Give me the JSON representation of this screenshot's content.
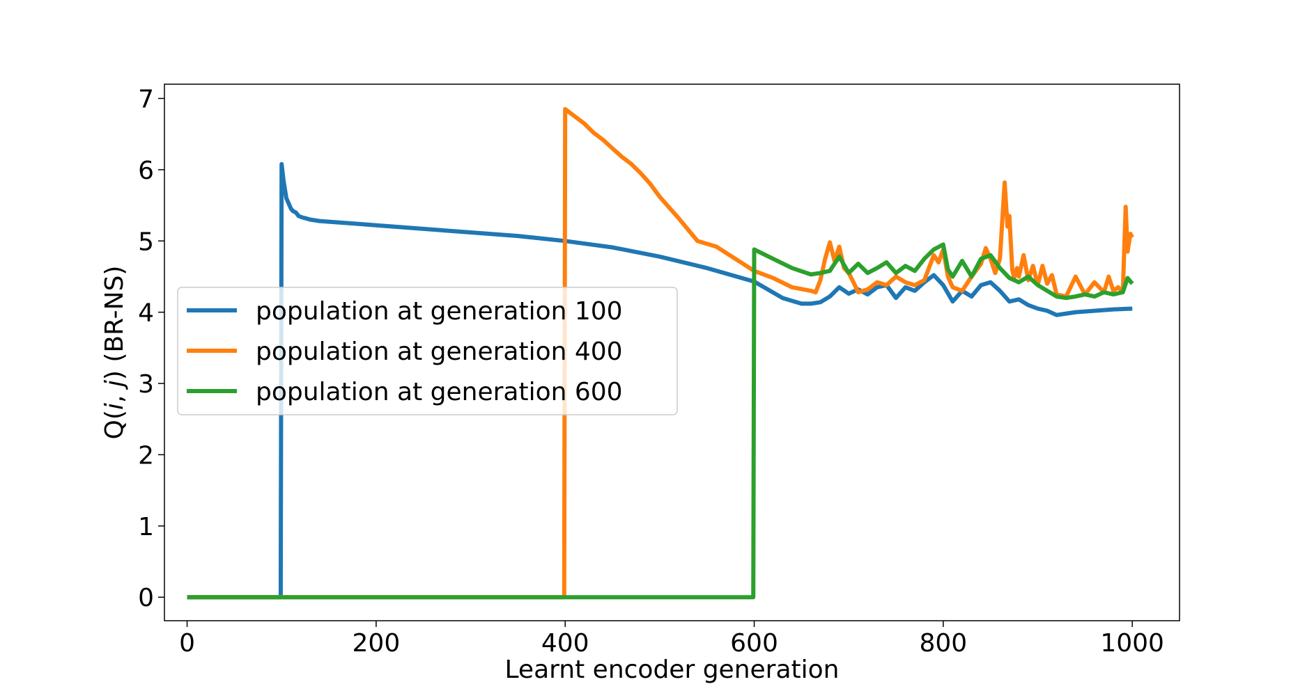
{
  "chart_data": {
    "type": "line",
    "title": "",
    "xlabel": "Learnt encoder generation",
    "ylabel_parts": [
      "Q(",
      "i",
      ", ",
      "j",
      ") (BR-NS)"
    ],
    "xlim": [
      -24,
      1050
    ],
    "ylim": [
      -0.33,
      7.2
    ],
    "xticks": [
      0,
      200,
      400,
      600,
      800,
      1000
    ],
    "xtick_labels": [
      "0",
      "200",
      "400",
      "600",
      "800",
      "1000"
    ],
    "yticks": [
      0,
      1,
      2,
      3,
      4,
      5,
      6,
      7
    ],
    "ytick_labels": [
      "0",
      "1",
      "2",
      "3",
      "4",
      "5",
      "6",
      "7"
    ],
    "grid": false,
    "legend_position": "center-left",
    "series": [
      {
        "name": "population at generation 100",
        "color": "#1f77b4",
        "x": [
          0,
          99,
          100,
          102,
          105,
          110,
          112,
          115,
          118,
          122,
          125,
          130,
          140,
          160,
          200,
          250,
          300,
          350,
          400,
          450,
          500,
          550,
          600,
          630,
          650,
          660,
          670,
          680,
          690,
          700,
          710,
          720,
          730,
          740,
          750,
          760,
          770,
          780,
          790,
          800,
          810,
          820,
          830,
          840,
          850,
          860,
          870,
          880,
          890,
          900,
          910,
          920,
          940,
          960,
          980,
          1000
        ],
        "y": [
          0,
          0,
          6.08,
          5.85,
          5.6,
          5.45,
          5.42,
          5.4,
          5.35,
          5.33,
          5.32,
          5.3,
          5.28,
          5.26,
          5.22,
          5.17,
          5.12,
          5.07,
          5.0,
          4.91,
          4.78,
          4.62,
          4.43,
          4.2,
          4.12,
          4.12,
          4.14,
          4.22,
          4.35,
          4.26,
          4.32,
          4.25,
          4.35,
          4.38,
          4.2,
          4.35,
          4.3,
          4.42,
          4.52,
          4.38,
          4.15,
          4.3,
          4.22,
          4.38,
          4.42,
          4.3,
          4.15,
          4.18,
          4.1,
          4.05,
          4.02,
          3.96,
          4.0,
          4.02,
          4.04,
          4.05
        ]
      },
      {
        "name": "population at generation 400",
        "color": "#ff7f0e",
        "x": [
          0,
          399,
          400,
          410,
          420,
          430,
          440,
          450,
          460,
          470,
          480,
          490,
          500,
          520,
          540,
          560,
          580,
          600,
          620,
          640,
          660,
          665,
          670,
          675,
          680,
          685,
          690,
          695,
          700,
          705,
          710,
          720,
          730,
          740,
          750,
          760,
          770,
          780,
          790,
          795,
          800,
          805,
          810,
          820,
          830,
          840,
          845,
          850,
          855,
          860,
          865,
          868,
          870,
          873,
          875,
          878,
          880,
          885,
          890,
          895,
          900,
          905,
          910,
          915,
          920,
          930,
          940,
          950,
          960,
          970,
          975,
          980,
          985,
          990,
          993,
          995,
          998,
          1000
        ],
        "y": [
          0,
          0,
          6.85,
          6.75,
          6.65,
          6.52,
          6.42,
          6.3,
          6.18,
          6.08,
          5.95,
          5.8,
          5.62,
          5.32,
          5.0,
          4.92,
          4.75,
          4.58,
          4.48,
          4.35,
          4.3,
          4.28,
          4.45,
          4.75,
          4.98,
          4.72,
          4.92,
          4.62,
          4.55,
          4.42,
          4.28,
          4.32,
          4.42,
          4.38,
          4.5,
          4.42,
          4.38,
          4.45,
          4.8,
          4.7,
          4.88,
          4.5,
          4.35,
          4.3,
          4.5,
          4.68,
          4.9,
          4.75,
          4.55,
          4.75,
          5.82,
          5.2,
          5.35,
          4.6,
          4.48,
          4.62,
          4.5,
          4.8,
          4.45,
          4.65,
          4.38,
          4.65,
          4.4,
          4.52,
          4.25,
          4.22,
          4.5,
          4.25,
          4.42,
          4.28,
          4.5,
          4.3,
          4.35,
          4.28,
          5.48,
          4.85,
          5.1,
          5.05
        ]
      },
      {
        "name": "population at generation 600",
        "color": "#2ca02c",
        "x": [
          0,
          599,
          600,
          620,
          640,
          660,
          670,
          680,
          690,
          700,
          710,
          720,
          730,
          740,
          750,
          760,
          770,
          780,
          790,
          800,
          805,
          810,
          820,
          830,
          840,
          850,
          860,
          870,
          880,
          890,
          900,
          910,
          920,
          930,
          940,
          950,
          960,
          970,
          980,
          990,
          995,
          1000
        ],
        "y": [
          0,
          0,
          4.88,
          4.75,
          4.62,
          4.53,
          4.55,
          4.58,
          4.78,
          4.55,
          4.68,
          4.55,
          4.62,
          4.7,
          4.55,
          4.65,
          4.58,
          4.75,
          4.88,
          4.95,
          4.6,
          4.5,
          4.72,
          4.5,
          4.75,
          4.8,
          4.62,
          4.48,
          4.42,
          4.5,
          4.38,
          4.3,
          4.22,
          4.2,
          4.22,
          4.25,
          4.22,
          4.28,
          4.25,
          4.28,
          4.48,
          4.4
        ]
      }
    ]
  }
}
